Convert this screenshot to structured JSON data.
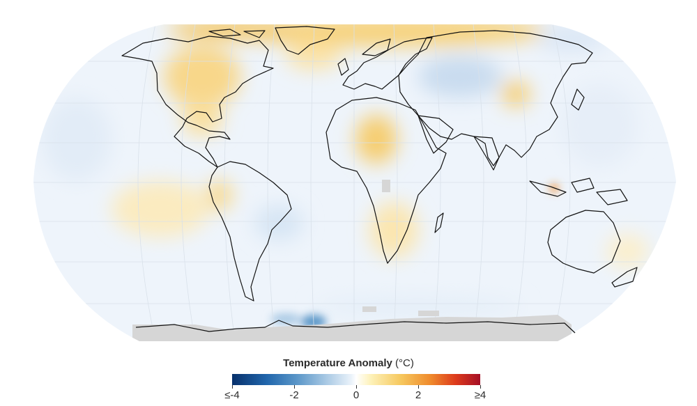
{
  "map": {
    "projection": "equal-earth",
    "coastline_color": "#111111",
    "no_data_color": "#d6d6d6",
    "ocean_base_color": "#eef4fb",
    "grid": true
  },
  "legend": {
    "title": "Temperature Anomaly",
    "unit": "(°C)",
    "min": -4,
    "max": 4,
    "ticks": [
      {
        "value": -4,
        "label": "≤-4"
      },
      {
        "value": -2,
        "label": "-2"
      },
      {
        "value": 0,
        "label": "0"
      },
      {
        "value": 2,
        "label": "2"
      },
      {
        "value": 4,
        "label": "≥4"
      }
    ],
    "colors": [
      "#07306b",
      "#2166ac",
      "#a9c9e4",
      "#ffffff",
      "#f6c85e",
      "#ef8a2c",
      "#a50f26"
    ]
  }
}
